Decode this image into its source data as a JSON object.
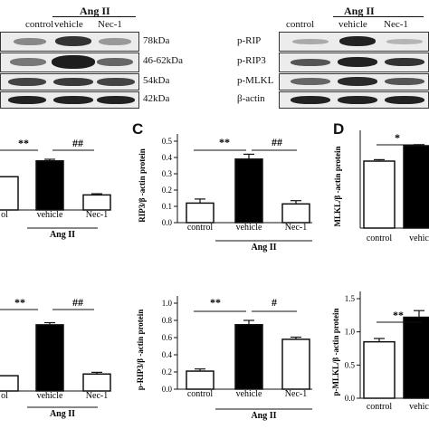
{
  "western_left": {
    "header": {
      "control": "control",
      "group": "Ang II",
      "vehicle": "vehicle",
      "nec": "Nec-1"
    },
    "markers": [
      "78kDa",
      "46-62kDa",
      "54kDa",
      "42kDa"
    ]
  },
  "western_right": {
    "header": {
      "control": "control",
      "group": "Ang II",
      "vehicle": "vehicle",
      "nec": "Nec-1"
    },
    "labels": [
      "p-RIP",
      "p-RIP3",
      "p-MLKL",
      "β-actin"
    ]
  },
  "panels": {
    "c": "C",
    "d": "D"
  },
  "chart_data": [
    {
      "id": "left-top",
      "type": "bar",
      "categories": [
        "control",
        "vehicle",
        "Nec-1"
      ],
      "tick_labels": [
        "ol",
        "vehicle",
        "Nec-1"
      ],
      "values": [
        0.42,
        0.62,
        0.19
      ],
      "errors": [
        0.0,
        0.02,
        0.015
      ],
      "fills": [
        "#ffffff",
        "#000000",
        "#ffffff"
      ],
      "ylim": [
        0,
        0.8
      ],
      "group_label": "Ang II",
      "significance": [
        "**",
        "##"
      ]
    },
    {
      "id": "C",
      "type": "bar",
      "categories": [
        "control",
        "vehicle",
        "Nec-1"
      ],
      "values": [
        0.12,
        0.39,
        0.115
      ],
      "errors": [
        0.025,
        0.03,
        0.02
      ],
      "fills": [
        "#ffffff",
        "#000000",
        "#ffffff"
      ],
      "ylim": [
        0,
        0.5
      ],
      "yticks": [
        "0.0",
        "0.1",
        "0.2",
        "0.3",
        "0.4",
        "0.5"
      ],
      "ylabel": "RIP3/β -actin protein",
      "group_label": "Ang II",
      "significance": [
        "**",
        "##"
      ]
    },
    {
      "id": "D",
      "type": "bar",
      "categories": [
        "control",
        "vehicle"
      ],
      "tick_labels": [
        "control",
        "vehic"
      ],
      "values": [
        0.37,
        0.455
      ],
      "errors": [
        0.008,
        0.006
      ],
      "fills": [
        "#ffffff",
        "#000000"
      ],
      "ylabel": "MLKL/β -actin protein",
      "significance": [
        "*"
      ]
    },
    {
      "id": "left-bottom",
      "type": "bar",
      "categories": [
        "control",
        "vehicle",
        "Nec-1"
      ],
      "tick_labels": [
        "ol",
        "vehicle",
        "Nec-1"
      ],
      "values": [
        0.18,
        0.78,
        0.2
      ],
      "errors": [
        0.0,
        0.025,
        0.02
      ],
      "fills": [
        "#ffffff",
        "#000000",
        "#ffffff"
      ],
      "group_label": "Ang II",
      "significance": [
        "**",
        "##"
      ]
    },
    {
      "id": "rip-bottom",
      "type": "bar",
      "categories": [
        "control",
        "vehicle",
        "Nec-1"
      ],
      "values": [
        0.21,
        0.75,
        0.58
      ],
      "errors": [
        0.025,
        0.05,
        0.025
      ],
      "fills": [
        "#ffffff",
        "#000000",
        "#ffffff"
      ],
      "ylim": [
        0,
        1.0
      ],
      "yticks": [
        "0.0",
        "0.2",
        "0.4",
        "0.6",
        "0.8",
        "1.0"
      ],
      "ylabel": "p-RIP3/β -actin protein",
      "group_label": "Ang II",
      "significance": [
        "**",
        "#"
      ]
    },
    {
      "id": "mlkl-bottom",
      "type": "bar",
      "categories": [
        "control",
        "vehicle"
      ],
      "tick_labels": [
        "control",
        "vehic"
      ],
      "values": [
        0.85,
        1.22
      ],
      "errors": [
        0.05,
        0.1
      ],
      "fills": [
        "#ffffff",
        "#000000"
      ],
      "ylim": [
        0,
        1.5
      ],
      "yticks": [
        "0.0",
        "0.5",
        "1.0",
        "1.5"
      ],
      "ylabel": "p-MLKL/β -actin protein",
      "significance": [
        "**"
      ]
    }
  ]
}
